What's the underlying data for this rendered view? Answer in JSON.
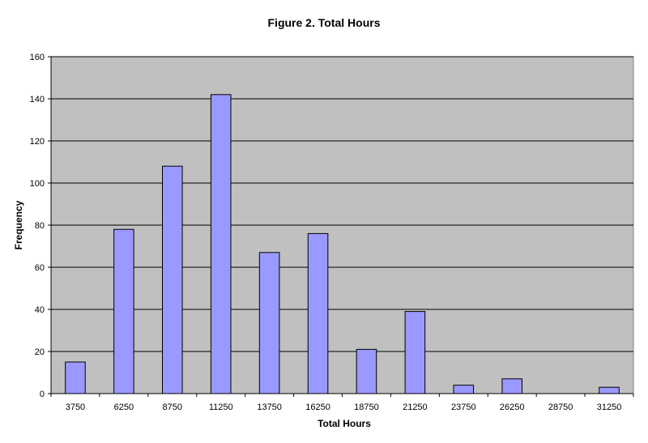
{
  "chart_data": {
    "type": "bar",
    "title": "Figure 2. Total Hours",
    "xlabel": "Total Hours",
    "ylabel": "Frequency",
    "categories": [
      "3750",
      "6250",
      "8750",
      "11250",
      "13750",
      "16250",
      "18750",
      "21250",
      "23750",
      "26250",
      "28750",
      "31250"
    ],
    "values": [
      15,
      78,
      108,
      142,
      67,
      76,
      21,
      39,
      4,
      7,
      0,
      3
    ],
    "ylim": [
      0,
      160
    ],
    "yticks": [
      0,
      20,
      40,
      60,
      80,
      100,
      120,
      140,
      160
    ],
    "grid": true,
    "legend": "none",
    "colors": {
      "bar_fill": "#9999ff",
      "bar_stroke": "#000000",
      "plot_background": "#c0c0c0",
      "gridline": "#000000"
    }
  }
}
